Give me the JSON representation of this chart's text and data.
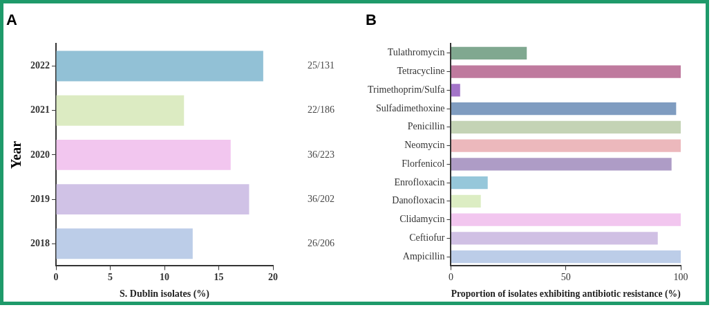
{
  "chart_data": [
    {
      "type": "bar",
      "orientation": "horizontal",
      "title": "A",
      "ylabel": "Year",
      "xlabel": "S. Dublin isolates (%)",
      "categories": [
        "2022",
        "2021",
        "2020",
        "2019",
        "2018"
      ],
      "values": [
        19.1,
        11.8,
        16.1,
        17.8,
        12.6
      ],
      "colors": [
        "#92c1d6",
        "#dcebc2",
        "#f2c6ef",
        "#d0c2e6",
        "#bccde8"
      ],
      "value_labels": [
        "25/131",
        "22/186",
        "36/223",
        "36/202",
        "26/206"
      ],
      "xlim": [
        0,
        20
      ],
      "xticks": [
        0,
        5,
        10,
        15,
        20
      ],
      "grid": false,
      "legend": false
    },
    {
      "type": "bar",
      "orientation": "horizontal",
      "title": "B",
      "xlabel": "Proportion of isolates exhibiting antibiotic resistance (%)",
      "categories": [
        "Tulathromycin",
        "Tetracycline",
        "Trimethoprim/Sulfa",
        "Sulfadimethoxine",
        "Penicillin",
        "Neomycin",
        "Florfenicol",
        "Enrofloxacin",
        "Danofloxacin",
        "Clidamycin",
        "Ceftiofur",
        "Ampicillin"
      ],
      "values": [
        33,
        100,
        4,
        98,
        100,
        100,
        96,
        16,
        13,
        100,
        90,
        100
      ],
      "colors": [
        "#80a890",
        "#bf7a9e",
        "#a374c8",
        "#7f9cc0",
        "#c4d3b5",
        "#ecb8bc",
        "#ae9cc6",
        "#96c7da",
        "#dcedc3",
        "#f2c6ef",
        "#d0c0e4",
        "#bccde8"
      ],
      "xlim": [
        0,
        100
      ],
      "xticks": [
        0,
        50,
        100
      ],
      "grid": false,
      "legend": false
    }
  ]
}
